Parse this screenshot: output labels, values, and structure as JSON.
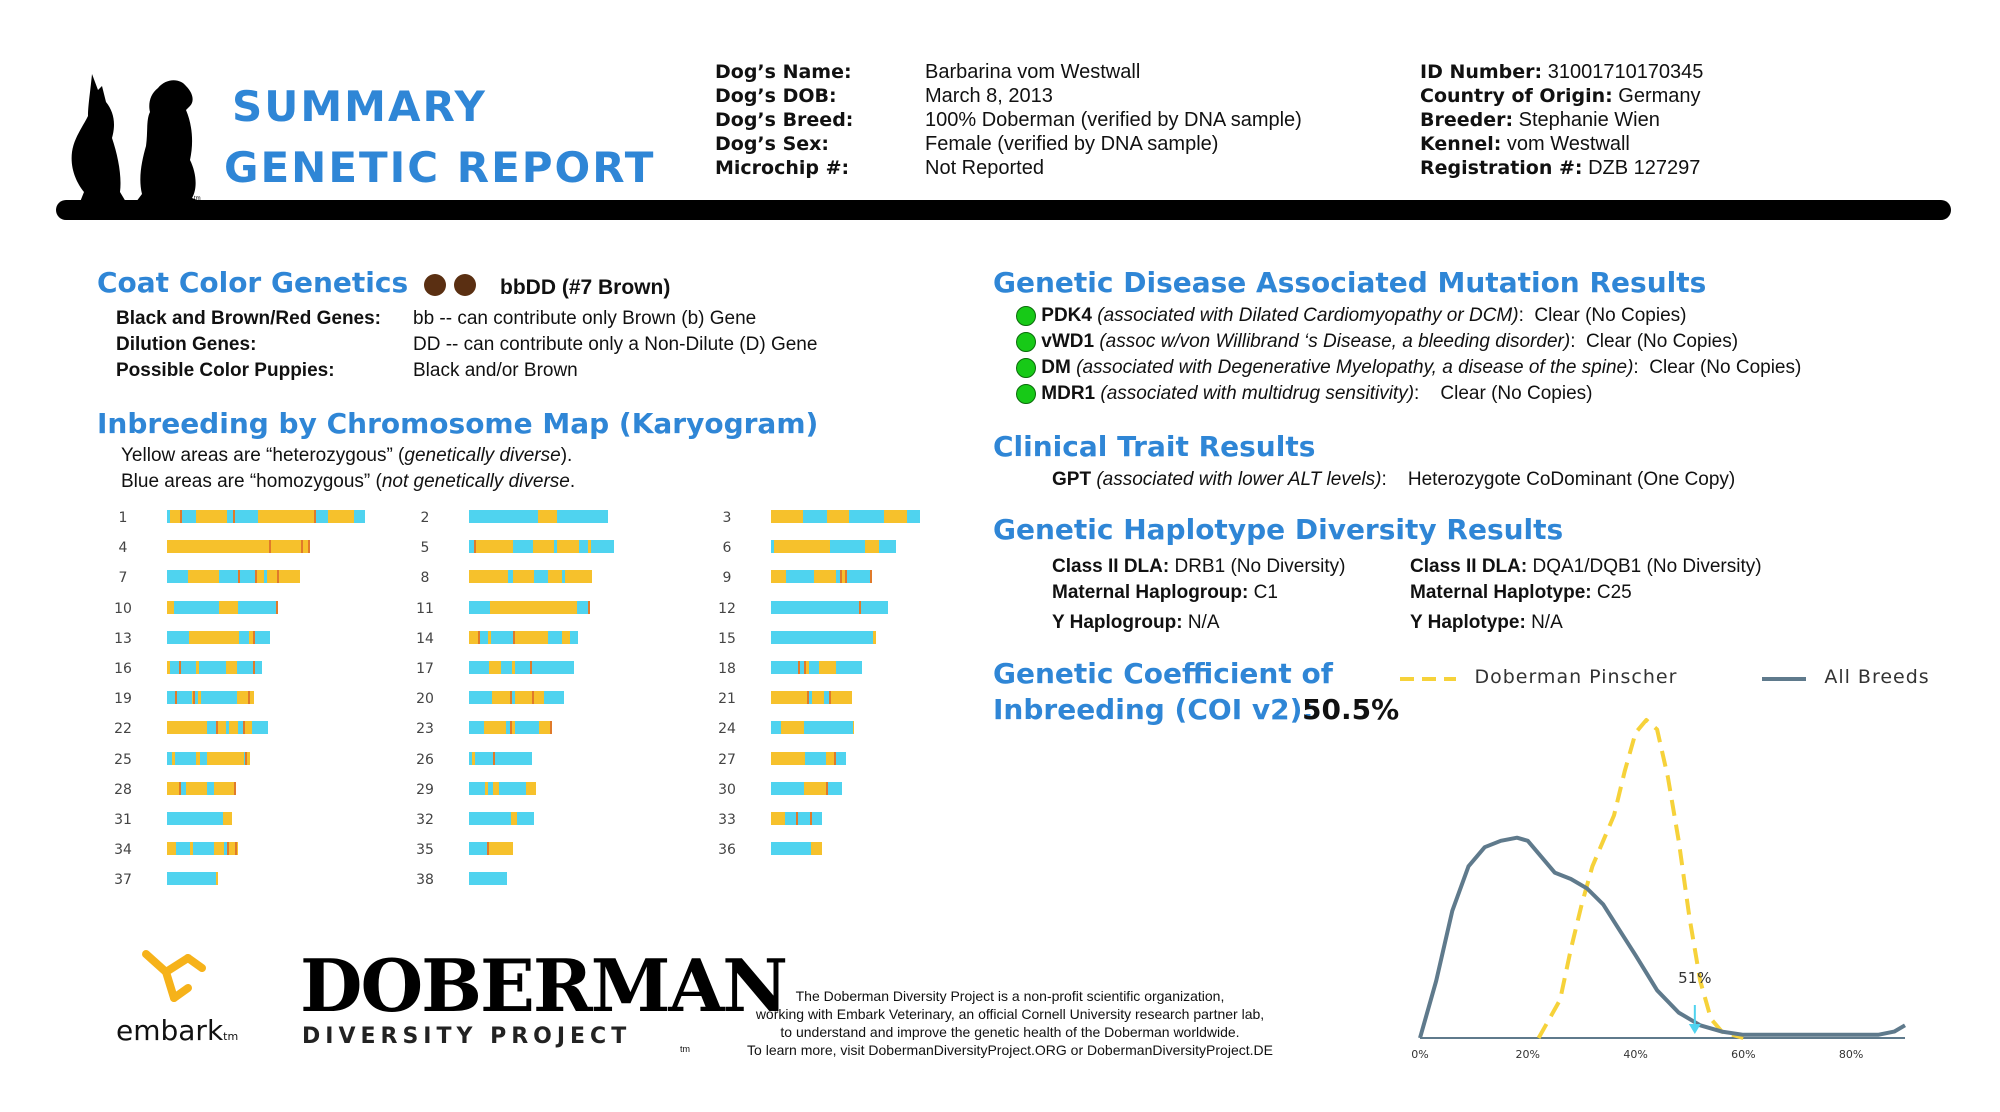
{
  "colors": {
    "accent": "#2f86d6",
    "heterozygous": "#f6c12c",
    "homozygous": "#4fd3ef",
    "clear": "#17c917"
  },
  "header": {
    "title_line1": "SUMMARY",
    "title_line2": "GENETIC REPORT",
    "tm": "tm",
    "dog_logo_icon": "two-dogs-silhouette-icon"
  },
  "dog_info": {
    "labels": [
      "Dog’s Name:",
      "Dog’s DOB:",
      "Dog’s Breed:",
      "Dog’s Sex:",
      "Microchip #:"
    ],
    "values": [
      "Barbarina vom Westwall",
      "March 8, 2013",
      "100% Doberman (verified by DNA sample)",
      "Female (verified by DNA sample)",
      "Not Reported"
    ],
    "right": [
      {
        "label": "ID Number:",
        "value": "31001710170345"
      },
      {
        "label": "Country of Origin:",
        "value": " Germany"
      },
      {
        "label": "Breeder:",
        "value": " Stephanie Wien"
      },
      {
        "label": "Kennel:",
        "value": "vom Westwall"
      },
      {
        "label": "Registration #:",
        "value": "DZB 127297"
      }
    ]
  },
  "coat": {
    "heading": "Coat Color Genetics",
    "result": "bbDD (#7 Brown)",
    "dot_color": "#5a2f12",
    "rows": [
      {
        "label": "Black and Brown/Red Genes:",
        "value": "bb -- can contribute only Brown (b) Gene"
      },
      {
        "label": "Dilution Genes:",
        "value": "DD -- can contribute only a Non-Dilute (D) Gene"
      },
      {
        "label": "Possible Color Puppies:",
        "value": "Black and/or Brown"
      }
    ]
  },
  "karyogram": {
    "heading": "Inbreeding by Chromosome Map (Karyogram)",
    "line1_prefix": "Yellow areas are “heterozygous” (",
    "line1_italic": "genetically diverse",
    "line1_suffix": ").",
    "line2_prefix": "Blue areas are “homozygous” (",
    "line2_italic": "not genetically diverse",
    "line2_suffix": ".",
    "chromosomes": [
      {
        "n": "1",
        "len": 1.0,
        "het": 0.45
      },
      {
        "n": "2",
        "len": 0.7,
        "het": 0.15
      },
      {
        "n": "3",
        "len": 0.75,
        "het": 0.45
      },
      {
        "n": "4",
        "len": 0.72,
        "het": 0.55
      },
      {
        "n": "5",
        "len": 0.73,
        "het": 0.55
      },
      {
        "n": "6",
        "len": 0.63,
        "het": 0.55
      },
      {
        "n": "7",
        "len": 0.67,
        "het": 0.55
      },
      {
        "n": "8",
        "len": 0.62,
        "het": 0.6
      },
      {
        "n": "9",
        "len": 0.51,
        "het": 0.5
      },
      {
        "n": "10",
        "len": 0.56,
        "het": 0.3
      },
      {
        "n": "11",
        "len": 0.61,
        "het": 0.45
      },
      {
        "n": "12",
        "len": 0.59,
        "het": 0.25
      },
      {
        "n": "13",
        "len": 0.52,
        "het": 0.5
      },
      {
        "n": "14",
        "len": 0.55,
        "het": 0.55
      },
      {
        "n": "15",
        "len": 0.53,
        "het": 0.25
      },
      {
        "n": "16",
        "len": 0.48,
        "het": 0.3
      },
      {
        "n": "17",
        "len": 0.53,
        "het": 0.65
      },
      {
        "n": "18",
        "len": 0.46,
        "het": 0.25
      },
      {
        "n": "19",
        "len": 0.44,
        "het": 0.45
      },
      {
        "n": "20",
        "len": 0.48,
        "het": 0.35
      },
      {
        "n": "21",
        "len": 0.41,
        "het": 0.5
      },
      {
        "n": "22",
        "len": 0.51,
        "het": 0.7
      },
      {
        "n": "23",
        "len": 0.42,
        "het": 0.35
      },
      {
        "n": "24",
        "len": 0.42,
        "het": 0.45
      },
      {
        "n": "25",
        "len": 0.42,
        "het": 0.45
      },
      {
        "n": "26",
        "len": 0.32,
        "het": 0.3
      },
      {
        "n": "27",
        "len": 0.38,
        "het": 0.45
      },
      {
        "n": "28",
        "len": 0.35,
        "het": 0.3
      },
      {
        "n": "29",
        "len": 0.34,
        "het": 0.4
      },
      {
        "n": "30",
        "len": 0.36,
        "het": 0.45
      },
      {
        "n": "31",
        "len": 0.33,
        "het": 0.55
      },
      {
        "n": "32",
        "len": 0.33,
        "het": 0.4
      },
      {
        "n": "33",
        "len": 0.26,
        "het": 0.4
      },
      {
        "n": "34",
        "len": 0.36,
        "het": 0.5
      },
      {
        "n": "35",
        "len": 0.22,
        "het": 0.5
      },
      {
        "n": "36",
        "len": 0.26,
        "het": 0.55
      },
      {
        "n": "37",
        "len": 0.26,
        "het": 0.4
      },
      {
        "n": "38",
        "len": 0.19,
        "het": 0.25
      }
    ]
  },
  "disease": {
    "heading": "Genetic Disease Associated Mutation Results",
    "items": [
      {
        "gene": "PDK4",
        "desc": " (associated with Dilated Cardiomyopathy or DCM)",
        "sep": ":",
        "result": "Clear (No Copies)"
      },
      {
        "gene": "vWD1",
        "desc": " (assoc w/von Willibrand ‘s Disease, a bleeding disorder)",
        "sep": ":",
        "result": "Clear (No Copies)"
      },
      {
        "gene": "DM",
        "desc": " (associated with Degenerative Myelopathy, a disease of the spine)",
        "sep": ":",
        "result": "Clear (No Copies)"
      },
      {
        "gene": "MDR1",
        "desc": " (associated with multidrug sensitivity)",
        "sep": ":",
        "result": "Clear (No Copies)"
      }
    ]
  },
  "clinical": {
    "heading": "Clinical Trait Results",
    "gene": "GPT",
    "desc": " (associated with lower ALT levels)",
    "sep": ":",
    "result": "Heterozygote CoDominant (One Copy)"
  },
  "haplotype": {
    "heading": "Genetic Haplotype Diversity Results",
    "left": [
      {
        "label": "Class II DLA:",
        "value": "DRB1  (No Diversity)"
      },
      {
        "label": "Maternal Haplogroup:",
        "value": "C1"
      },
      {
        "label": "Y Haplogroup:",
        "value": "N/A"
      }
    ],
    "right": [
      {
        "label": "Class II DLA:",
        "value": "DQA1/DQB1 (No Diversity)"
      },
      {
        "label": "Maternal Haplotype:",
        "value": "C25"
      },
      {
        "label": "Y Haplotype:",
        "value": "N/A"
      }
    ]
  },
  "coi": {
    "heading_line1": "Genetic Coefficient of",
    "heading_line2": "Inbreeding (COI v2):",
    "value": "50.5%"
  },
  "chart_data": {
    "type": "line",
    "title": "",
    "xlabel": "",
    "ylabel": "",
    "xlim": [
      0,
      90
    ],
    "x_ticks": [
      "0%",
      "20%",
      "40%",
      "60%",
      "80%"
    ],
    "marker": {
      "x": 51,
      "label": "51%"
    },
    "series": [
      {
        "name": "Doberman Pinscher",
        "style": "dashed",
        "color": "#f6d23a",
        "x": [
          22,
          26,
          28,
          30,
          32,
          34,
          36,
          38,
          40,
          42,
          44,
          46,
          48,
          50,
          52,
          54,
          56,
          58,
          60
        ],
        "y": [
          0.0,
          0.12,
          0.28,
          0.42,
          0.54,
          0.62,
          0.7,
          0.84,
          0.96,
          1.0,
          0.97,
          0.82,
          0.62,
          0.38,
          0.18,
          0.06,
          0.02,
          0.01,
          0.0
        ]
      },
      {
        "name": "All Breeds",
        "style": "solid",
        "color": "#5f7a8c",
        "x": [
          0,
          3,
          6,
          9,
          12,
          15,
          18,
          20,
          22,
          25,
          28,
          31,
          34,
          37,
          40,
          44,
          48,
          52,
          56,
          60,
          65,
          70,
          75,
          80,
          85,
          88,
          90
        ],
        "y": [
          0.0,
          0.18,
          0.4,
          0.54,
          0.6,
          0.62,
          0.63,
          0.62,
          0.58,
          0.52,
          0.5,
          0.47,
          0.42,
          0.34,
          0.26,
          0.15,
          0.08,
          0.04,
          0.02,
          0.01,
          0.01,
          0.01,
          0.01,
          0.01,
          0.01,
          0.02,
          0.04
        ]
      }
    ]
  },
  "footer": {
    "embark_label": "embark",
    "embark_tm": "tm",
    "embark_icon": "embark-molecule-icon",
    "doberman_logo_top": "DOBERMAN",
    "doberman_logo_bottom": "DIVERSITY PROJECT",
    "doberman_tm": "tm",
    "about_lines": [
      "The Doberman Diversity Project is a non-profit scientific organization,",
      "working with Embark Veterinary, an official Cornell University research partner lab,",
      "to understand and improve the genetic health of the Doberman worldwide.",
      "To learn more, visit DobermanDiversityProject.ORG or DobermanDiversityProject.DE"
    ]
  }
}
